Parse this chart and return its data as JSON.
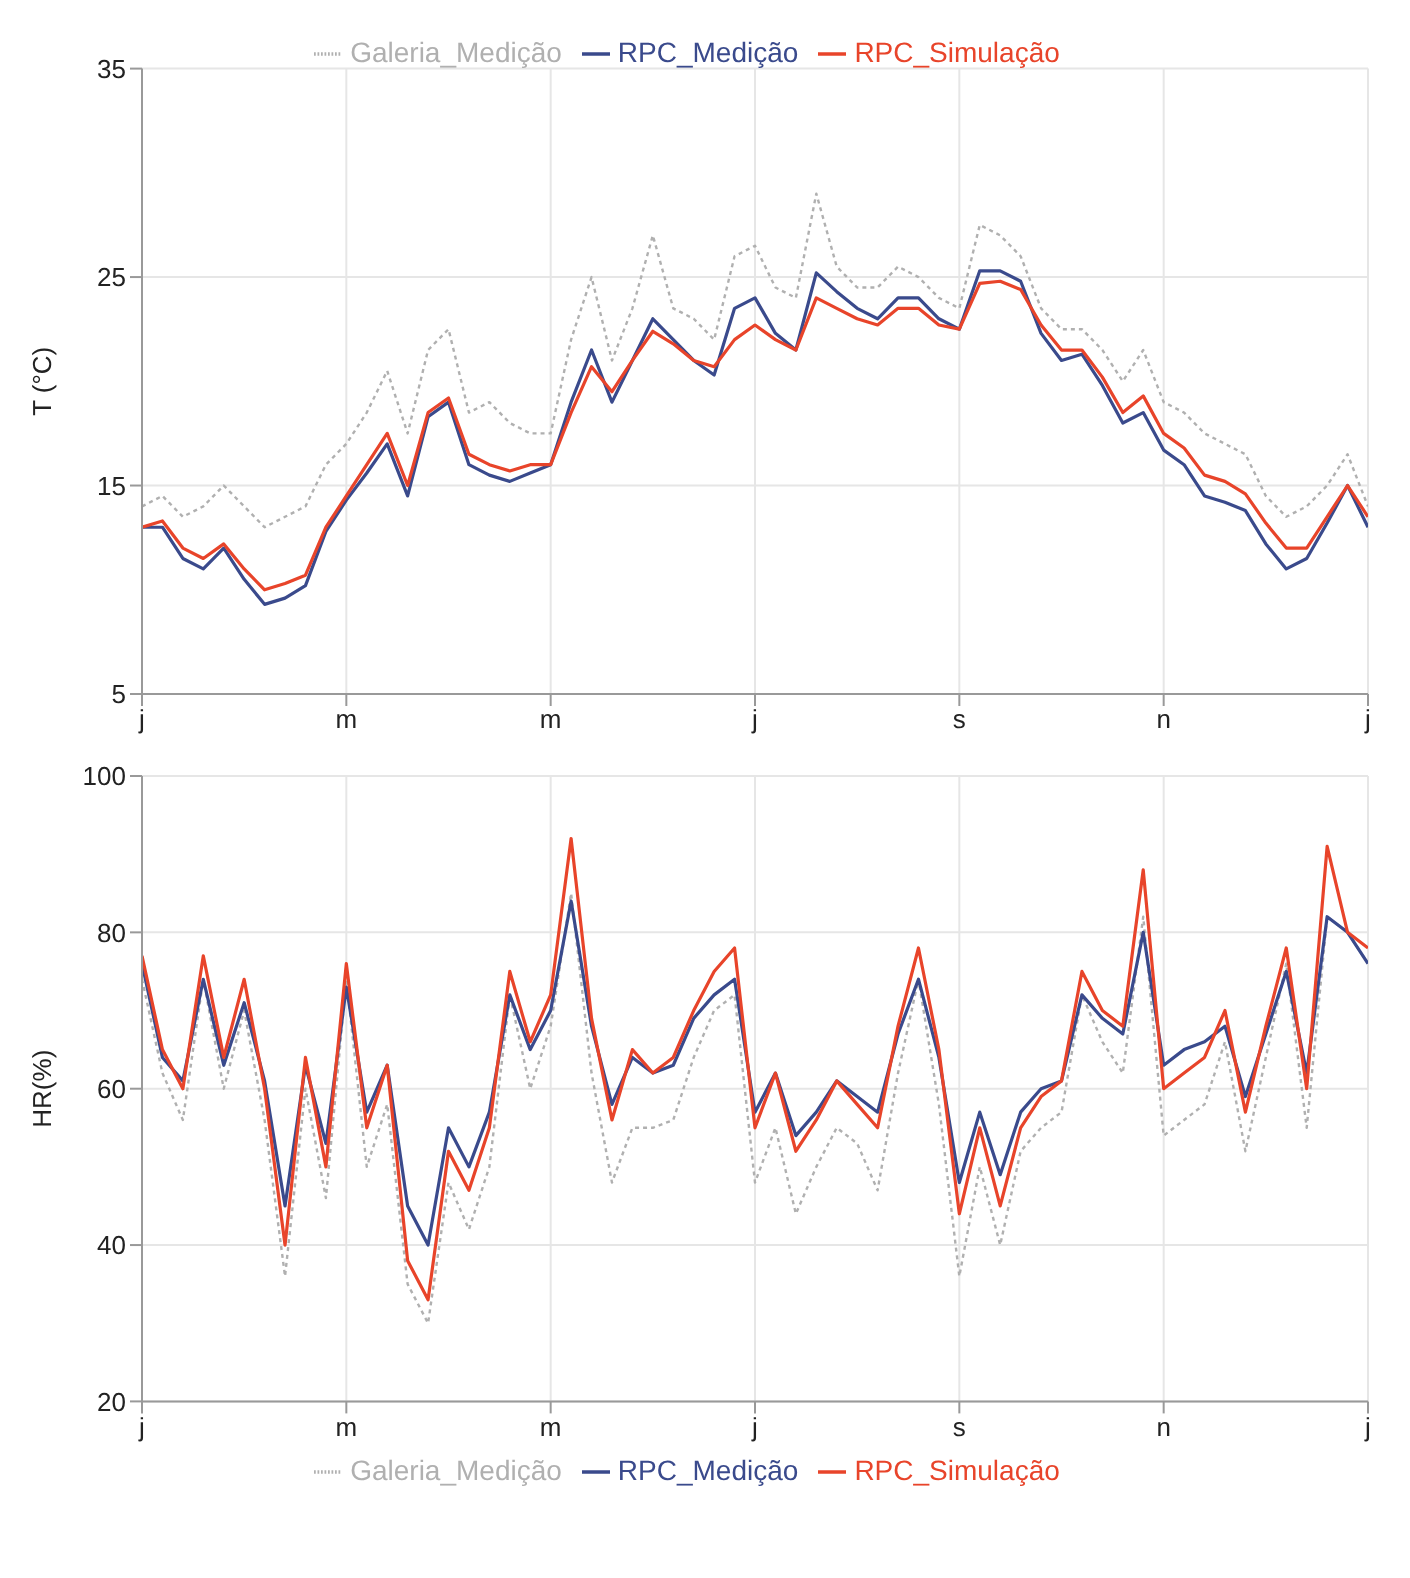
{
  "chart_data": [
    {
      "type": "line",
      "ylabel": "T (°C)",
      "ylim": [
        5,
        35
      ],
      "yticks": [
        5,
        15,
        25,
        35
      ],
      "grid": true,
      "legend": "top",
      "marker": "none",
      "categories": [
        "j",
        null,
        null,
        null,
        null,
        null,
        null,
        null,
        null,
        null,
        "m",
        null,
        null,
        null,
        null,
        null,
        null,
        null,
        null,
        null,
        "m",
        null,
        null,
        null,
        null,
        null,
        null,
        null,
        null,
        null,
        "j",
        null,
        null,
        null,
        null,
        null,
        null,
        null,
        null,
        null,
        "s",
        null,
        null,
        null,
        null,
        null,
        null,
        null,
        null,
        null,
        "n",
        null,
        null,
        null,
        null,
        null,
        null,
        null,
        null,
        null,
        "j"
      ],
      "series": [
        {
          "name": "Galeria_Medição",
          "color": "#b0b0b0",
          "line_style": "dotted",
          "values": [
            14,
            14.5,
            13.5,
            14,
            15,
            14,
            13,
            13.5,
            14,
            16,
            17,
            18.5,
            20.5,
            17.5,
            21.5,
            22.5,
            18.5,
            19,
            18,
            17.5,
            17.5,
            22,
            25,
            21,
            23.5,
            27,
            23.5,
            23,
            22,
            26,
            26.5,
            24.5,
            24,
            29,
            25.5,
            24.5,
            24.5,
            25.5,
            25,
            24,
            23.5,
            27.5,
            27,
            26,
            23.5,
            22.5,
            22.5,
            21.5,
            20,
            21.5,
            19,
            18.5,
            17.5,
            17,
            16.5,
            14.5,
            13.5,
            14,
            15,
            16.5,
            14
          ]
        },
        {
          "name": "RPC_Medição",
          "color": "#3a4a8c",
          "line_style": "solid",
          "values": [
            13,
            13,
            11.5,
            11,
            12,
            10.5,
            9.3,
            9.6,
            10.2,
            12.8,
            14.3,
            15.6,
            17,
            14.5,
            18.3,
            19,
            16,
            15.5,
            15.2,
            15.6,
            16,
            19,
            21.5,
            19,
            21,
            23,
            22,
            21,
            20.3,
            23.5,
            24,
            22.3,
            21.5,
            25.2,
            24.3,
            23.5,
            23,
            24,
            24,
            23,
            22.5,
            25.3,
            25.3,
            24.8,
            22.3,
            21,
            21.3,
            19.8,
            18,
            18.5,
            16.7,
            16,
            14.5,
            14.2,
            13.8,
            12.2,
            11,
            11.5,
            13.2,
            15,
            13
          ]
        },
        {
          "name": "RPC_Simulação",
          "color": "#e8442a",
          "line_style": "solid",
          "values": [
            13,
            13.3,
            12,
            11.5,
            12.2,
            11,
            10,
            10.3,
            10.7,
            13,
            14.5,
            16,
            17.5,
            15,
            18.5,
            19.2,
            16.5,
            16,
            15.7,
            16,
            16,
            18.5,
            20.7,
            19.5,
            21,
            22.4,
            21.8,
            21,
            20.7,
            22,
            22.7,
            22,
            21.5,
            24,
            23.5,
            23,
            22.7,
            23.5,
            23.5,
            22.7,
            22.5,
            24.7,
            24.8,
            24.4,
            22.7,
            21.5,
            21.5,
            20.2,
            18.5,
            19.3,
            17.5,
            16.8,
            15.5,
            15.2,
            14.6,
            13.2,
            12,
            12,
            13.5,
            15,
            13.5
          ]
        }
      ]
    },
    {
      "type": "line",
      "ylabel": "HR(%)",
      "ylim": [
        20,
        100
      ],
      "yticks": [
        20,
        40,
        60,
        80,
        100
      ],
      "grid": true,
      "legend": "bottom",
      "marker": "none",
      "categories": [
        "j",
        null,
        null,
        null,
        null,
        null,
        null,
        null,
        null,
        null,
        "m",
        null,
        null,
        null,
        null,
        null,
        null,
        null,
        null,
        null,
        "m",
        null,
        null,
        null,
        null,
        null,
        null,
        null,
        null,
        null,
        "j",
        null,
        null,
        null,
        null,
        null,
        null,
        null,
        null,
        null,
        "s",
        null,
        null,
        null,
        null,
        null,
        null,
        null,
        null,
        null,
        "n",
        null,
        null,
        null,
        null,
        null,
        null,
        null,
        null,
        null,
        "j"
      ],
      "series": [
        {
          "name": "Galeria_Medição",
          "color": "#b0b0b0",
          "line_style": "dotted",
          "values": [
            74,
            62,
            56,
            74,
            60,
            70,
            56,
            36,
            60,
            46,
            74,
            50,
            58,
            35,
            30,
            48,
            42,
            50,
            72,
            60,
            68,
            85,
            62,
            48,
            55,
            55,
            56,
            64,
            70,
            72,
            48,
            55,
            44,
            50,
            55,
            53,
            47,
            62,
            74,
            58,
            36,
            50,
            40,
            52,
            55,
            57,
            72,
            66,
            62,
            82,
            54,
            56,
            58,
            66,
            52,
            64,
            76,
            55,
            82,
            80,
            76
          ]
        },
        {
          "name": "RPC_Medição",
          "color": "#3a4a8c",
          "line_style": "solid",
          "values": [
            76,
            64,
            61,
            74,
            63,
            71,
            61,
            45,
            63,
            53,
            73,
            57,
            63,
            45,
            40,
            55,
            50,
            57,
            72,
            65,
            70,
            84,
            68,
            58,
            64,
            62,
            63,
            69,
            72,
            74,
            57,
            62,
            54,
            57,
            61,
            59,
            57,
            67,
            74,
            64,
            48,
            57,
            49,
            57,
            60,
            61,
            72,
            69,
            67,
            80,
            63,
            65,
            66,
            68,
            59,
            67,
            75,
            62,
            82,
            80,
            76
          ]
        },
        {
          "name": "RPC_Simulação",
          "color": "#e8442a",
          "line_style": "solid",
          "values": [
            77,
            65,
            60,
            77,
            64,
            74,
            60,
            40,
            64,
            50,
            76,
            55,
            63,
            38,
            33,
            52,
            47,
            55,
            75,
            66,
            72,
            92,
            69,
            56,
            65,
            62,
            64,
            70,
            75,
            78,
            55,
            62,
            52,
            56,
            61,
            58,
            55,
            68,
            78,
            65,
            44,
            55,
            45,
            55,
            59,
            61,
            75,
            70,
            68,
            88,
            60,
            62,
            64,
            70,
            57,
            68,
            78,
            60,
            91,
            80,
            78
          ]
        }
      ]
    }
  ]
}
